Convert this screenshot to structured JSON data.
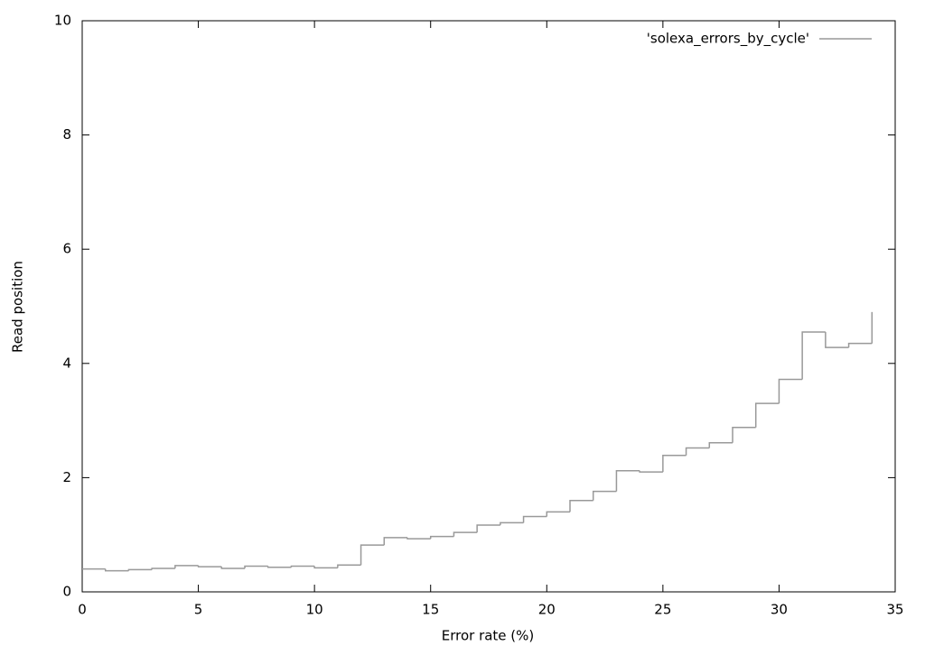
{
  "chart_data": {
    "type": "step",
    "xlabel": "Error rate (%)",
    "ylabel": "Read position",
    "x": [
      0,
      1,
      2,
      3,
      4,
      5,
      6,
      7,
      8,
      9,
      10,
      11,
      12,
      13,
      14,
      15,
      16,
      17,
      18,
      19,
      20,
      21,
      22,
      23,
      24,
      25,
      26,
      27,
      28,
      29,
      30,
      31,
      32,
      33,
      34
    ],
    "series": [
      {
        "name": "'solexa_errors_by_cycle'",
        "color": "#999999",
        "values": [
          0.4,
          0.37,
          0.39,
          0.41,
          0.46,
          0.44,
          0.41,
          0.45,
          0.43,
          0.45,
          0.42,
          0.47,
          0.82,
          0.95,
          0.93,
          0.97,
          1.04,
          1.17,
          1.21,
          1.32,
          1.4,
          1.6,
          1.76,
          2.12,
          2.1,
          2.39,
          2.52,
          2.61,
          2.88,
          3.3,
          3.72,
          4.55,
          4.28,
          4.35,
          4.9
        ]
      }
    ],
    "xlim": [
      0,
      35
    ],
    "ylim": [
      0,
      10
    ],
    "xticks": [
      0,
      5,
      10,
      15,
      20,
      25,
      30,
      35
    ],
    "yticks": [
      0,
      2,
      4,
      6,
      8,
      10
    ],
    "legend": "top-right"
  }
}
